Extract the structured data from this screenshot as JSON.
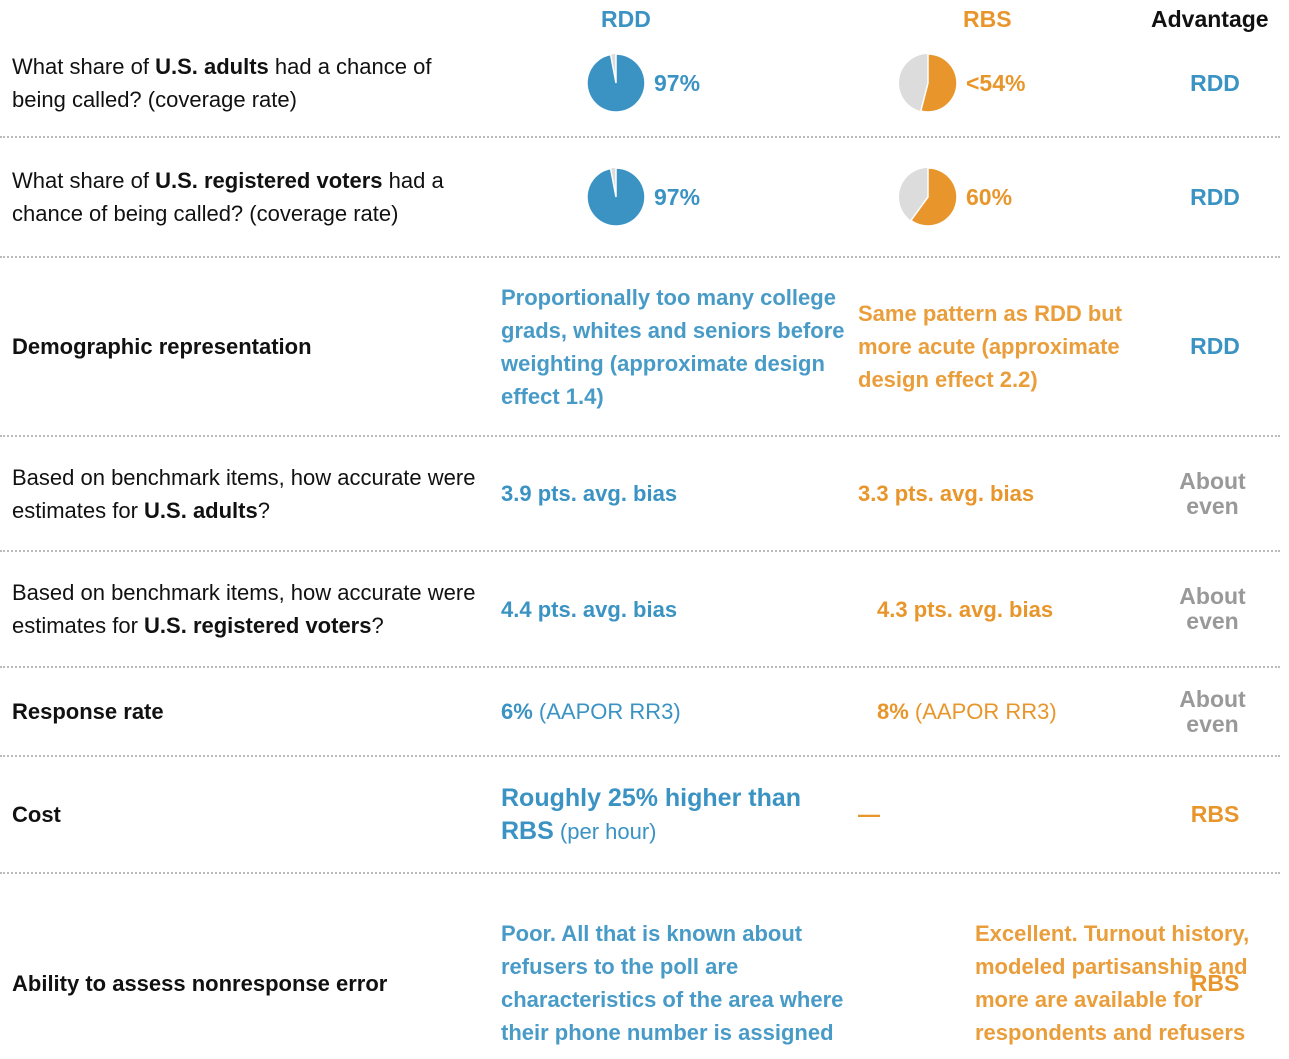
{
  "header": {
    "rdd": "RDD",
    "rbs": "RBS",
    "advantage": "Advantage"
  },
  "rows": [
    {
      "question": [
        {
          "text": "What share of "
        },
        {
          "text": "U.S. adults",
          "bold": true
        },
        {
          "text": " had a chance of being called? (coverage rate)"
        }
      ],
      "rdd": {
        "pie": 97,
        "label": "97%"
      },
      "rbs": {
        "pie": 54,
        "label": "<54%"
      },
      "advantage": "RDD"
    },
    {
      "question": [
        {
          "text": "What share of "
        },
        {
          "text": "U.S. registered voters",
          "bold": true
        },
        {
          "text": " had a chance of being called? (coverage rate)"
        }
      ],
      "rdd": {
        "pie": 97,
        "label": "97%"
      },
      "rbs": {
        "pie": 60,
        "label": "60%"
      },
      "advantage": "RDD"
    },
    {
      "question": [
        {
          "text": "Demographic representation",
          "bold": true
        }
      ],
      "rdd": {
        "segments": [
          {
            "text": "Proportionally too many college grads, whites and seniors before weighting (approximate design effect 1.4)",
            "semibold": true
          }
        ]
      },
      "rbs": {
        "segments": [
          {
            "text": "Same pattern as RDD but more acute (approximate design effect 2.2)",
            "semibold": true
          }
        ]
      },
      "advantage": "RDD"
    },
    {
      "question": [
        {
          "text": "Based on benchmark items, how accurate were estimates for "
        },
        {
          "text": "U.S. adults",
          "bold": true
        },
        {
          "text": "?"
        }
      ],
      "rdd": {
        "segments": [
          {
            "text": "3.9 pts. avg. bias",
            "bold": true
          }
        ]
      },
      "rbs": {
        "segments": [
          {
            "text": "3.3 pts. avg. bias",
            "bold": true
          }
        ]
      },
      "advantage": "About even"
    },
    {
      "question": [
        {
          "text": "Based on benchmark items, how accurate were estimates for "
        },
        {
          "text": "U.S. registered voters",
          "bold": true
        },
        {
          "text": "?"
        }
      ],
      "rdd": {
        "segments": [
          {
            "text": "4.4 pts. avg. bias",
            "bold": true
          }
        ]
      },
      "rbs": {
        "segments": [
          {
            "text": "4.3 pts. avg. bias",
            "bold": true
          }
        ]
      },
      "advantage": "About even"
    },
    {
      "question": [
        {
          "text": "Response rate",
          "bold": true
        }
      ],
      "rdd": {
        "segments": [
          {
            "text": "6%",
            "bold": true
          },
          {
            "text": " (AAPOR RR3)"
          }
        ]
      },
      "rbs": {
        "segments": [
          {
            "text": "8%",
            "bold": true
          },
          {
            "text": " (AAPOR RR3)"
          }
        ]
      },
      "advantage": "About even"
    },
    {
      "question": [
        {
          "text": "Cost",
          "bold": true
        }
      ],
      "rdd": {
        "segments": [
          {
            "text": "Roughly 25% higher than RBS",
            "bold": true,
            "large": true
          },
          {
            "text": " (per hour)"
          }
        ]
      },
      "rbs": {
        "segments": [
          {
            "text": "—",
            "bold": true
          }
        ]
      },
      "advantage": "RBS"
    },
    {
      "question": [
        {
          "text": "Ability to assess nonresponse error",
          "bold": true
        }
      ],
      "rdd": {
        "segments": [
          {
            "text": "Poor. All that is known about refusers to the poll are characteristics of the area where their phone number is assigned",
            "semibold": true
          }
        ]
      },
      "rbs": {
        "segments": [
          {
            "text": "Excellent. Turnout history, modeled partisanship and more are available for respondents and refusers",
            "semibold": true
          }
        ]
      },
      "advantage": "RBS"
    }
  ]
}
